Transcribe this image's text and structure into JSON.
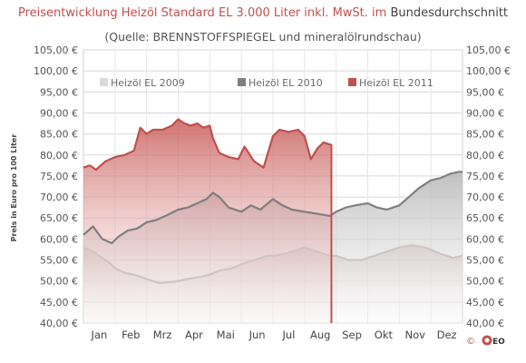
{
  "chart_data": {
    "type": "area",
    "title": {
      "part1": "Preisentwicklung Heizöl Standard EL 3.000 Liter inkl. MwSt. im",
      "part2": "Bundesdurchschnitt"
    },
    "subtitle": "(Quelle: BRENNSTOFFSPIEGEL  und mineralölrundschau)",
    "ylabel": "Preis in Euro pro 100 Liter",
    "ylim": [
      40,
      105
    ],
    "yticks": [
      "40,00 €",
      "45,00 €",
      "50,00 €",
      "55,00 €",
      "60,00 €",
      "65,00 €",
      "70,00 €",
      "75,00 €",
      "80,00 €",
      "85,00 €",
      "90,00 €",
      "95,00 €",
      "100,00 €",
      "105,00 €"
    ],
    "categories": [
      "Jan",
      "Feb",
      "Mrz",
      "Apr",
      "Mai",
      "Jun",
      "Jul",
      "Aug",
      "Sep",
      "Okt",
      "Nov",
      "Dez"
    ],
    "grid": true,
    "legend_position": "top",
    "series": [
      {
        "name": "Heizöl EL 2009",
        "color": "#d6d6d6",
        "x": [
          0.0,
          0.2,
          0.5,
          0.8,
          1.0,
          1.3,
          1.6,
          2.0,
          2.4,
          2.8,
          3.0,
          3.3,
          3.7,
          4.0,
          4.3,
          4.7,
          5.0,
          5.4,
          5.8,
          6.0,
          6.4,
          6.8,
          7.0,
          7.4,
          7.8,
          8.0,
          8.4,
          8.8,
          9.0,
          9.4,
          9.8,
          10.0,
          10.4,
          10.8,
          11.0,
          11.3,
          11.7,
          12.0
        ],
        "values": [
          58.0,
          57.5,
          56.0,
          54.5,
          53.0,
          52.0,
          51.5,
          50.5,
          49.5,
          49.8,
          50.0,
          50.5,
          51.0,
          51.5,
          52.5,
          53.0,
          54.0,
          55.0,
          56.0,
          56.0,
          56.5,
          57.5,
          58.0,
          57.0,
          56.0,
          56.0,
          55.0,
          55.0,
          55.5,
          56.5,
          57.5,
          58.0,
          58.5,
          58.0,
          57.5,
          56.5,
          55.5,
          56.0
        ]
      },
      {
        "name": "Heizöl EL 2010",
        "color": "#808080",
        "x": [
          0.0,
          0.3,
          0.6,
          0.9,
          1.1,
          1.4,
          1.7,
          2.0,
          2.3,
          2.6,
          3.0,
          3.3,
          3.6,
          3.9,
          4.1,
          4.3,
          4.6,
          5.0,
          5.3,
          5.6,
          6.0,
          6.3,
          6.6,
          7.0,
          7.4,
          7.8,
          8.0,
          8.3,
          8.6,
          9.0,
          9.3,
          9.6,
          10.0,
          10.3,
          10.6,
          11.0,
          11.3,
          11.6,
          11.9,
          12.0
        ],
        "values": [
          61.0,
          63.0,
          60.0,
          59.0,
          60.5,
          62.0,
          62.5,
          64.0,
          64.5,
          65.5,
          67.0,
          67.5,
          68.5,
          69.5,
          71.0,
          70.0,
          67.5,
          66.5,
          68.0,
          67.0,
          69.5,
          68.0,
          67.0,
          66.5,
          66.0,
          65.5,
          66.5,
          67.5,
          68.0,
          68.5,
          67.5,
          67.0,
          68.0,
          70.0,
          72.0,
          74.0,
          74.5,
          75.5,
          76.0,
          76.0
        ]
      },
      {
        "name": "Heizöl EL 2011",
        "color": "#c0504d",
        "x": [
          0.0,
          0.2,
          0.4,
          0.7,
          1.0,
          1.3,
          1.6,
          1.8,
          2.0,
          2.2,
          2.5,
          2.8,
          3.0,
          3.2,
          3.4,
          3.6,
          3.8,
          4.0,
          4.1,
          4.3,
          4.6,
          4.9,
          5.1,
          5.4,
          5.7,
          6.0,
          6.2,
          6.5,
          6.8,
          7.0,
          7.2,
          7.4,
          7.6,
          7.8,
          7.85
        ],
        "values": [
          77.0,
          77.5,
          76.5,
          78.5,
          79.5,
          80.0,
          81.0,
          86.5,
          85.0,
          86.0,
          86.0,
          87.0,
          88.5,
          87.5,
          87.0,
          87.5,
          86.5,
          87.0,
          84.0,
          80.5,
          79.5,
          79.0,
          82.0,
          78.5,
          77.0,
          84.5,
          86.0,
          85.5,
          86.0,
          84.5,
          79.0,
          81.5,
          83.0,
          82.5,
          82.5
        ]
      }
    ]
  },
  "logo": {
    "label": "©",
    "text": "EO"
  }
}
